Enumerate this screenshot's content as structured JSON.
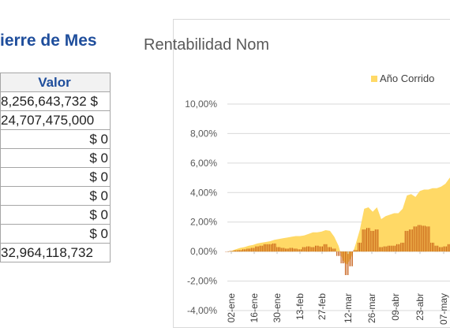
{
  "left_panel": {
    "title": "ierre de Mes",
    "column_header": "Valor",
    "rows": [
      "$ 8,256,643,732",
      "24,707,475,000",
      "$ 0",
      "$ 0",
      "$ 0",
      "$ 0",
      "$ 0",
      "$ 0",
      "32,964,118,732"
    ]
  },
  "chart_data": {
    "type": "area",
    "title": "Rentabilidad Nom",
    "legend": [
      {
        "name": "Año Corrido",
        "color": "#ffd966"
      }
    ],
    "ylim": [
      -4,
      10
    ],
    "y_ticks": [
      "10,00%",
      "8,00%",
      "6,00%",
      "4,00%",
      "2,00%",
      "0,00%",
      "-2,00%",
      "-4,00%"
    ],
    "x_ticks": [
      "02-ene",
      "16-ene",
      "30-ene",
      "13-feb",
      "27-feb",
      "12-mar",
      "26-mar",
      "09-abr",
      "23-abr",
      "07-may"
    ],
    "series": [
      {
        "name": "Año Corrido",
        "color": "#ffd966",
        "values": [
          0.0,
          0.05,
          0.15,
          0.25,
          0.3,
          0.4,
          0.45,
          0.55,
          0.6,
          0.65,
          0.7,
          0.8,
          0.85,
          0.9,
          0.95,
          1.0,
          1.05,
          1.05,
          1.1,
          1.2,
          1.3,
          1.3,
          1.35,
          1.45,
          1.4,
          1.0,
          0.4,
          -0.6,
          -0.9,
          -0.4,
          0.5,
          1.5,
          2.9,
          3.0,
          2.7,
          3.0,
          2.2,
          2.4,
          2.5,
          2.6,
          2.6,
          2.9,
          3.8,
          3.9,
          3.7,
          4.1,
          4.2,
          4.2,
          4.3,
          4.3,
          4.4,
          4.6,
          5.0,
          5.1
        ]
      },
      {
        "name": "",
        "color": "#c55a11",
        "values": [
          0.0,
          0.04,
          0.08,
          0.1,
          0.15,
          0.2,
          0.25,
          0.35,
          0.4,
          0.5,
          0.5,
          0.55,
          0.3,
          0.25,
          0.2,
          0.25,
          0.2,
          0.15,
          0.3,
          0.35,
          0.3,
          0.4,
          0.35,
          0.5,
          0.3,
          0.2,
          -0.3,
          -0.8,
          -1.6,
          -1.0,
          0.1,
          0.6,
          1.5,
          1.6,
          1.4,
          1.5,
          0.3,
          0.35,
          0.4,
          0.4,
          0.5,
          0.6,
          1.4,
          1.5,
          1.7,
          1.8,
          1.75,
          1.7,
          0.6,
          0.4,
          0.3,
          0.35,
          0.5,
          0.6
        ]
      }
    ]
  }
}
